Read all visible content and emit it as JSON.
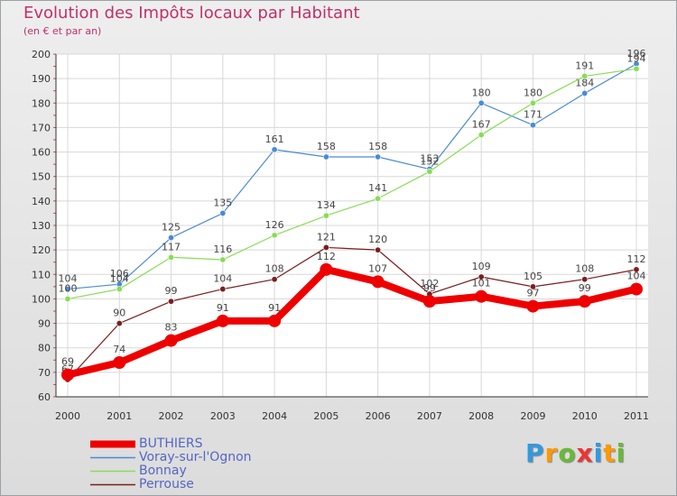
{
  "title": "Evolution des Impôts locaux par Habitant",
  "subtitle": "(en € et par an)",
  "logo": {
    "letters": [
      "P",
      "r",
      "o",
      "x",
      "i",
      "t",
      "i"
    ],
    "colors": [
      "#3399dd",
      "#ff9900",
      "#66bb33",
      "#ee3333",
      "#3399dd",
      "#ff9900",
      "#66bb33"
    ]
  },
  "chart_data": {
    "type": "line",
    "title": "Evolution des Impôts locaux par Habitant",
    "subtitle": "(en € et par an)",
    "xlabel": "",
    "ylabel": "",
    "x": [
      "2000",
      "2001",
      "2002",
      "2003",
      "2004",
      "2005",
      "2006",
      "2007",
      "2008",
      "2009",
      "2010",
      "2011"
    ],
    "ylim": [
      60,
      200
    ],
    "yticks": [
      60,
      70,
      80,
      90,
      100,
      110,
      120,
      130,
      140,
      150,
      160,
      170,
      180,
      190,
      200
    ],
    "grid": true,
    "legend_position": "bottom-left",
    "series": [
      {
        "name": "BUTHIERS",
        "color": "#ee0000",
        "values": [
          69,
          74,
          83,
          91,
          91,
          112,
          107,
          99,
          101,
          97,
          99,
          104
        ],
        "labels": [
          "69",
          "74",
          "83",
          "91",
          "91",
          "112",
          "107",
          "99",
          "101",
          "97",
          "99",
          "104"
        ]
      },
      {
        "name": "Voray-sur-l'Ognon",
        "color": "#4a8bd6",
        "values": [
          104,
          106,
          125,
          135,
          161,
          158,
          158,
          153,
          180,
          171,
          184,
          196
        ],
        "labels": [
          "104",
          "106",
          "125",
          "135",
          "161",
          "158",
          "158",
          "153",
          "180",
          "171",
          "184",
          "196"
        ]
      },
      {
        "name": "Bonnay",
        "color": "#88dd55",
        "values": [
          100,
          104,
          117,
          116,
          126,
          134,
          141,
          152,
          167,
          180,
          191,
          194
        ],
        "labels": [
          "100",
          "104",
          "117",
          "116",
          "126",
          "134",
          "141",
          "152",
          "167",
          "180",
          "191",
          "194"
        ]
      },
      {
        "name": "Perrouse",
        "color": "#7a1e1e",
        "values": [
          67,
          90,
          99,
          104,
          108,
          121,
          120,
          102,
          109,
          105,
          108,
          112
        ],
        "labels": [
          "67",
          "90",
          "99",
          "104",
          "108",
          "121",
          "120",
          "102",
          "109",
          "105",
          "108",
          "112"
        ]
      }
    ]
  }
}
